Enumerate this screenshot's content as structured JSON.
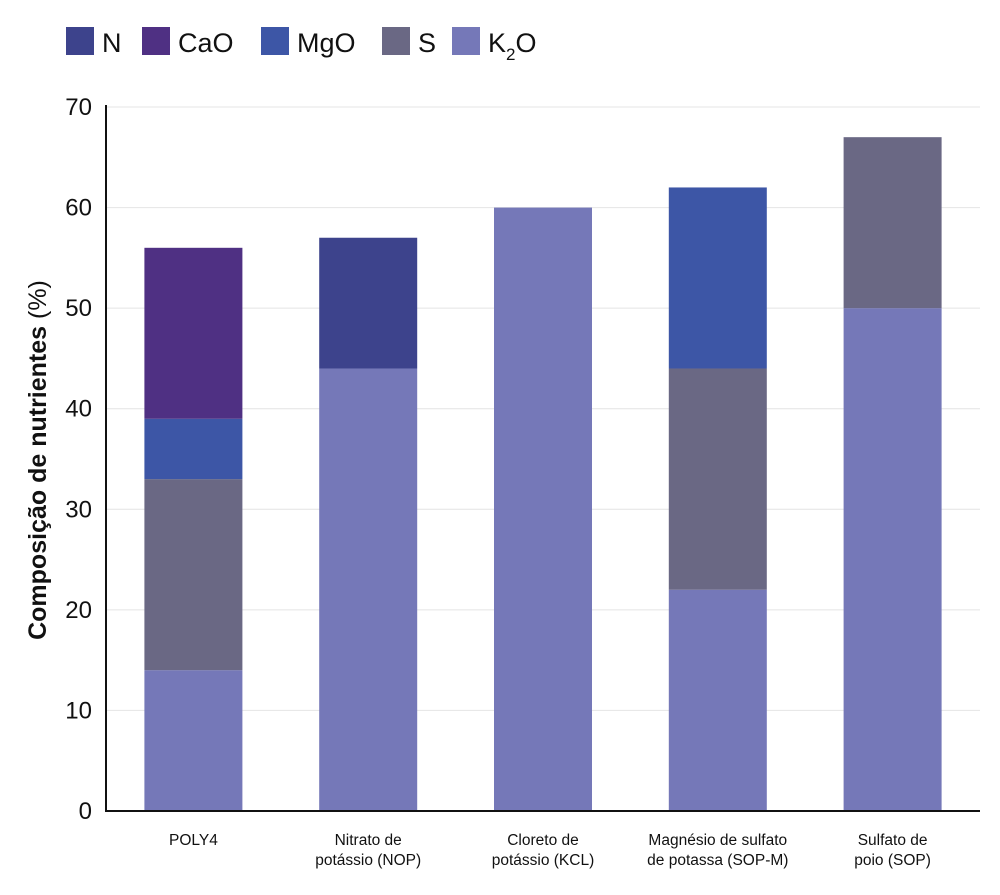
{
  "chart_data": {
    "type": "bar",
    "stacked": true,
    "title": "",
    "xlabel": "",
    "ylabel": "Composição de nutrientes",
    "ylabel_unit": "(%)",
    "ylim": [
      0,
      70
    ],
    "yticks": [
      0,
      10,
      20,
      30,
      40,
      50,
      60,
      70
    ],
    "grid": true,
    "legend_position": "top-left",
    "categories": [
      [
        "POLY4"
      ],
      [
        "Nitrato de",
        "potássio (NOP)"
      ],
      [
        "Cloreto de",
        "potássio (KCL)"
      ],
      [
        "Magnésio de sulfato",
        "de potassa (SOP-M)"
      ],
      [
        "Sulfato de",
        "poio (SOP)"
      ]
    ],
    "legend_order": [
      "N",
      "CaO",
      "MgO",
      "S",
      "K2O"
    ],
    "series": [
      {
        "name": "K2O",
        "label_main": "K",
        "label_sub": "2",
        "label_tail": "O",
        "color": "#7578b8",
        "values": [
          14,
          44,
          60,
          22,
          50
        ]
      },
      {
        "name": "S",
        "label_main": "S",
        "color": "#6a6884",
        "values": [
          19,
          0,
          0,
          22,
          17
        ]
      },
      {
        "name": "MgO",
        "label_main": "MgO",
        "color": "#3d56a6",
        "values": [
          6,
          0,
          0,
          18,
          0
        ]
      },
      {
        "name": "CaO",
        "label_main": "CaO",
        "color": "#4f3083",
        "values": [
          17,
          0,
          0,
          0,
          0
        ]
      },
      {
        "name": "N",
        "label_main": "N",
        "color": "#3d438c",
        "values": [
          0,
          13,
          0,
          0,
          0
        ]
      }
    ]
  }
}
